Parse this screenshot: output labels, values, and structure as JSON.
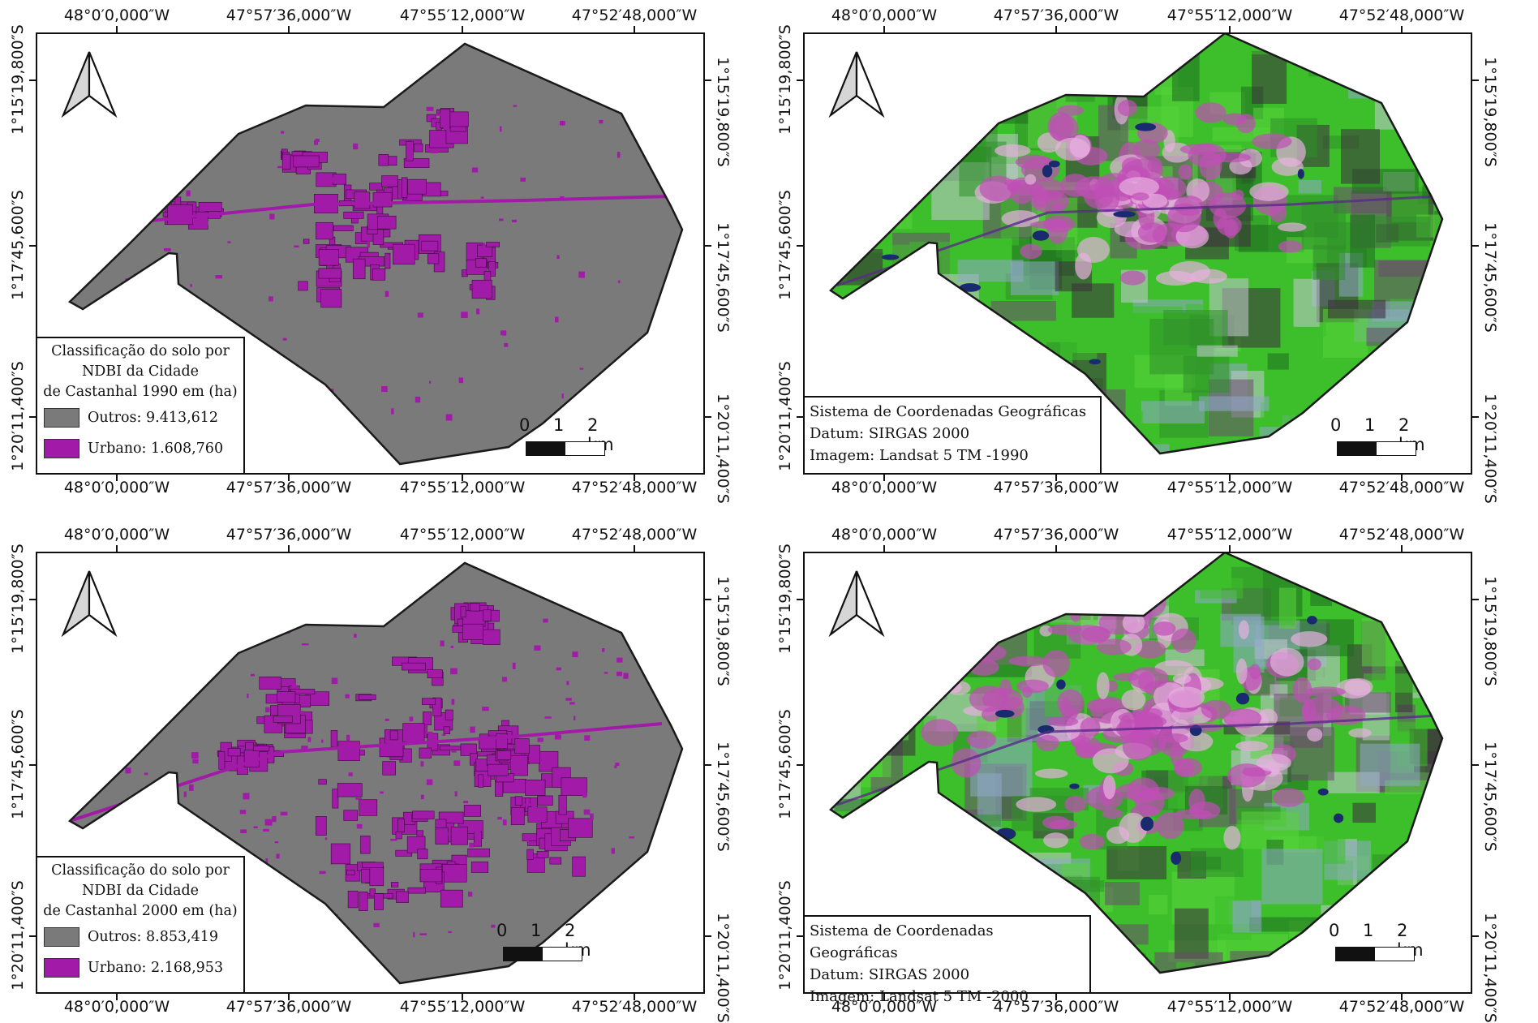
{
  "coords": {
    "lon": [
      "48°0′0,000″W",
      "47°57′36,000″W",
      "47°55′12,000″W",
      "47°52′48,000″W"
    ],
    "lat": [
      "1°15′19,800″S",
      "1°17′45,600″S",
      "1°20′11,400″S"
    ]
  },
  "maps": [
    {
      "id": "ndbi-1990",
      "kind": "classification",
      "legend": {
        "title_lines": [
          "Classificação do solo por",
          "NDBI da Cidade",
          "de Castanhal 1990 em (ha)"
        ],
        "items": [
          {
            "label": "Outros: 9.413,612",
            "color": "#7a7a7a"
          },
          {
            "label": "Urbano: 1.608,760",
            "color": "#a21aa8"
          }
        ]
      },
      "scale": {
        "labels": [
          "0",
          "1",
          "2 km"
        ]
      }
    },
    {
      "id": "landsat-1990",
      "kind": "satellite",
      "info": [
        "Sistema de Coordenadas Geográficas",
        "Datum: SIRGAS 2000",
        "Imagem: Landsat 5 TM -1990"
      ],
      "scale": {
        "labels": [
          "0",
          "1",
          "2 km"
        ]
      }
    },
    {
      "id": "ndbi-2000",
      "kind": "classification",
      "legend": {
        "title_lines": [
          "Classificação do solo por",
          "NDBI da Cidade",
          "de Castanhal 2000 em (ha)"
        ],
        "items": [
          {
            "label": "Outros: 8.853,419",
            "color": "#7a7a7a"
          },
          {
            "label": "Urbano: 2.168,953",
            "color": "#a21aa8"
          }
        ]
      },
      "scale": {
        "labels": [
          "0",
          "1",
          "2 km"
        ]
      }
    },
    {
      "id": "landsat-2000",
      "kind": "satellite",
      "info": [
        "Sistema de Coordenadas Geográficas",
        "Datum: SIRGAS 2000",
        "Imagem: Landsat 5 TM -2000"
      ],
      "scale": {
        "labels": [
          "0",
          "1",
          "2 km"
        ]
      }
    }
  ],
  "colors": {
    "outros": "#7a7a7a",
    "urbano": "#a21aa8",
    "vegetation": "#3cbf2a",
    "vegetation_dark": "#1f6b1f",
    "urban_pink": "#c14fb6",
    "water": "#1a2a6e"
  },
  "icons": [
    "north-arrow-icon"
  ]
}
